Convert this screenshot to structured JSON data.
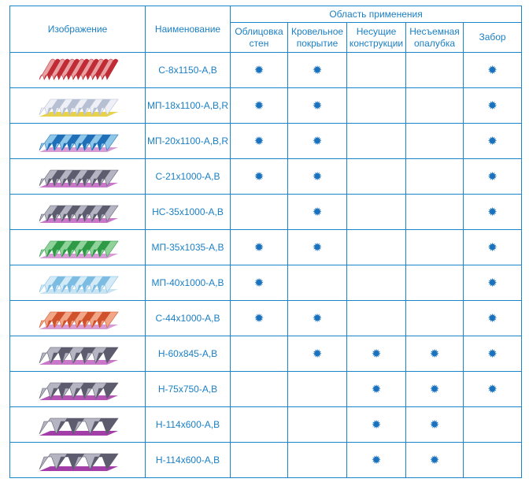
{
  "headers": {
    "image": "Изображение",
    "name": "Наименование",
    "group": "Область применения",
    "apps": [
      [
        "Облицовка",
        "стен"
      ],
      [
        "Кровельное",
        "покрытие"
      ],
      [
        "Несущие",
        "конструкции"
      ],
      [
        "Несъемная",
        "опалубка"
      ],
      [
        "Забор",
        ""
      ]
    ]
  },
  "mark_glyph": "✹",
  "rows": [
    {
      "name": "С-8х1150-А,В",
      "marks": [
        true,
        true,
        false,
        false,
        true
      ],
      "image": {
        "type": "wave-sheet",
        "colors": [
          "#e9a0a3",
          "#c02c35"
        ]
      }
    },
    {
      "name": "МП-18х1100-А,В,R",
      "marks": [
        true,
        true,
        false,
        false,
        true
      ],
      "image": {
        "type": "trap-sheet",
        "colors": [
          "#eef0f6",
          "#b7bfd3",
          "#e7d24a"
        ]
      }
    },
    {
      "name": "МП-20х1100-А,В,R",
      "marks": [
        true,
        true,
        false,
        false,
        true
      ],
      "image": {
        "type": "trap-sheet",
        "colors": [
          "#8fc7e8",
          "#1f6fb8",
          "#d79bd6"
        ]
      }
    },
    {
      "name": "С-21х1000-А,В",
      "marks": [
        true,
        true,
        false,
        false,
        true
      ],
      "image": {
        "type": "trap-sheet",
        "colors": [
          "#b4b4c2",
          "#5c5c6e",
          "#c978c9"
        ]
      }
    },
    {
      "name": "НС-35х1000-А,В",
      "marks": [
        false,
        true,
        false,
        false,
        true
      ],
      "image": {
        "type": "trap-sheet",
        "colors": [
          "#b4b4c2",
          "#5c5c6e",
          "#c978c9"
        ]
      }
    },
    {
      "name": "МП-35х1035-А,В",
      "marks": [
        true,
        true,
        false,
        false,
        true
      ],
      "image": {
        "type": "trap-sheet",
        "colors": [
          "#8fd39a",
          "#2f9a45",
          "#d79bd6"
        ]
      }
    },
    {
      "name": "МП-40х1000-А,В",
      "marks": [
        true,
        false,
        false,
        false,
        true
      ],
      "image": {
        "type": "trap-sheet",
        "colors": [
          "#d4ebf7",
          "#7cbce3",
          "#c8e3f2"
        ]
      }
    },
    {
      "name": "С-44х1000-А,В",
      "marks": [
        true,
        true,
        false,
        false,
        true
      ],
      "image": {
        "type": "trap-sheet",
        "colors": [
          "#f2a688",
          "#d0522c",
          "#d79bd6"
        ]
      }
    },
    {
      "name": "Н-60х845-А,В",
      "marks": [
        false,
        true,
        true,
        true,
        true
      ],
      "image": {
        "type": "deep-sheet",
        "colors": [
          "#b4b4c2",
          "#5c5c6e",
          "#c978c9"
        ]
      }
    },
    {
      "name": "Н-75х750-А,В",
      "marks": [
        false,
        false,
        true,
        true,
        true
      ],
      "image": {
        "type": "deep-sheet",
        "colors": [
          "#b4b4c2",
          "#5c5c6e",
          "#b455b4"
        ]
      }
    },
    {
      "name": "Н-114х600-А,В",
      "marks": [
        false,
        false,
        true,
        true,
        false
      ],
      "image": {
        "type": "deck-sheet",
        "colors": [
          "#b4b4c2",
          "#5c5c6e",
          "#a33ea8"
        ]
      }
    },
    {
      "name": "Н-114х600-А,В",
      "marks": [
        false,
        false,
        true,
        true,
        false
      ],
      "image": {
        "type": "deck-sheet",
        "colors": [
          "#b4b4c2",
          "#5c5c6e",
          "#a33ea8"
        ]
      }
    }
  ]
}
